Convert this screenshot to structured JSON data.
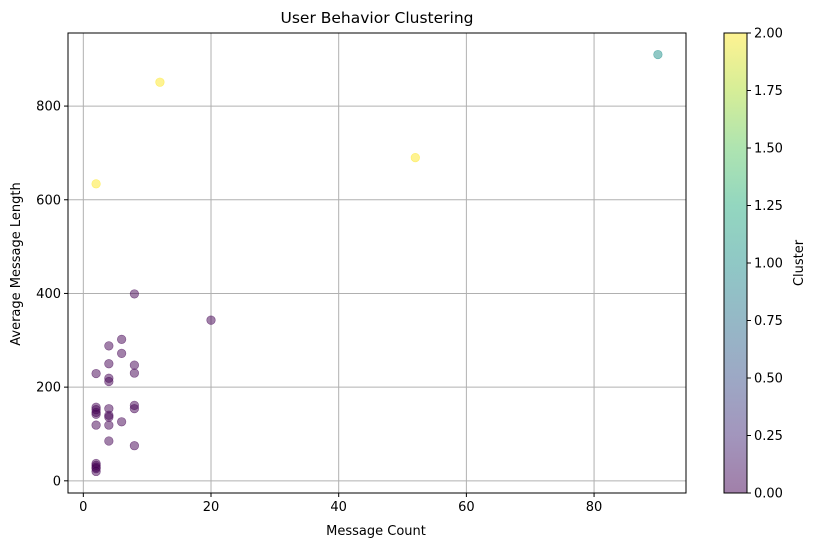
{
  "chart_data": {
    "type": "scatter",
    "title": "User Behavior Clustering",
    "xlabel": "Message Count",
    "ylabel": "Average Message Length",
    "xlim": [
      -2.4,
      94.4
    ],
    "ylim": [
      -26,
      956
    ],
    "xticks": [
      0,
      20,
      40,
      60,
      80
    ],
    "yticks": [
      0,
      200,
      400,
      600,
      800
    ],
    "grid": true,
    "colorbar": {
      "label": "Cluster",
      "range": [
        0,
        2
      ],
      "ticks": [
        "0.00",
        "0.25",
        "0.50",
        "0.75",
        "1.00",
        "1.25",
        "1.50",
        "1.75",
        "2.00"
      ],
      "colormap": "viridis",
      "alpha": 0.5
    },
    "cluster_colors": {
      "0": "#440154",
      "1": "#21918c",
      "2": "#fde725"
    },
    "points": [
      {
        "x": 90,
        "y": 910,
        "cluster": 1
      },
      {
        "x": 12,
        "y": 851,
        "cluster": 2
      },
      {
        "x": 52,
        "y": 690,
        "cluster": 2
      },
      {
        "x": 2,
        "y": 634,
        "cluster": 2
      },
      {
        "x": 8,
        "y": 399,
        "cluster": 0
      },
      {
        "x": 20,
        "y": 343,
        "cluster": 0
      },
      {
        "x": 6,
        "y": 302,
        "cluster": 0
      },
      {
        "x": 4,
        "y": 288,
        "cluster": 0
      },
      {
        "x": 6,
        "y": 272,
        "cluster": 0
      },
      {
        "x": 4,
        "y": 250,
        "cluster": 0
      },
      {
        "x": 8,
        "y": 247,
        "cluster": 0
      },
      {
        "x": 2,
        "y": 229,
        "cluster": 0
      },
      {
        "x": 8,
        "y": 230,
        "cluster": 0
      },
      {
        "x": 4,
        "y": 219,
        "cluster": 0
      },
      {
        "x": 4,
        "y": 212,
        "cluster": 0
      },
      {
        "x": 8,
        "y": 161,
        "cluster": 0
      },
      {
        "x": 8,
        "y": 154,
        "cluster": 0
      },
      {
        "x": 2,
        "y": 157,
        "cluster": 0
      },
      {
        "x": 2,
        "y": 152,
        "cluster": 0
      },
      {
        "x": 2,
        "y": 146,
        "cluster": 0
      },
      {
        "x": 2,
        "y": 142,
        "cluster": 0
      },
      {
        "x": 4,
        "y": 154,
        "cluster": 0
      },
      {
        "x": 4,
        "y": 140,
        "cluster": 0
      },
      {
        "x": 4,
        "y": 136,
        "cluster": 0
      },
      {
        "x": 6,
        "y": 126,
        "cluster": 0
      },
      {
        "x": 2,
        "y": 119,
        "cluster": 0
      },
      {
        "x": 4,
        "y": 119,
        "cluster": 0
      },
      {
        "x": 4,
        "y": 85,
        "cluster": 0
      },
      {
        "x": 8,
        "y": 75,
        "cluster": 0
      },
      {
        "x": 2,
        "y": 37,
        "cluster": 0
      },
      {
        "x": 2,
        "y": 33,
        "cluster": 0
      },
      {
        "x": 2,
        "y": 29,
        "cluster": 0
      },
      {
        "x": 2,
        "y": 26,
        "cluster": 0
      },
      {
        "x": 2,
        "y": 20,
        "cluster": 0
      }
    ]
  }
}
